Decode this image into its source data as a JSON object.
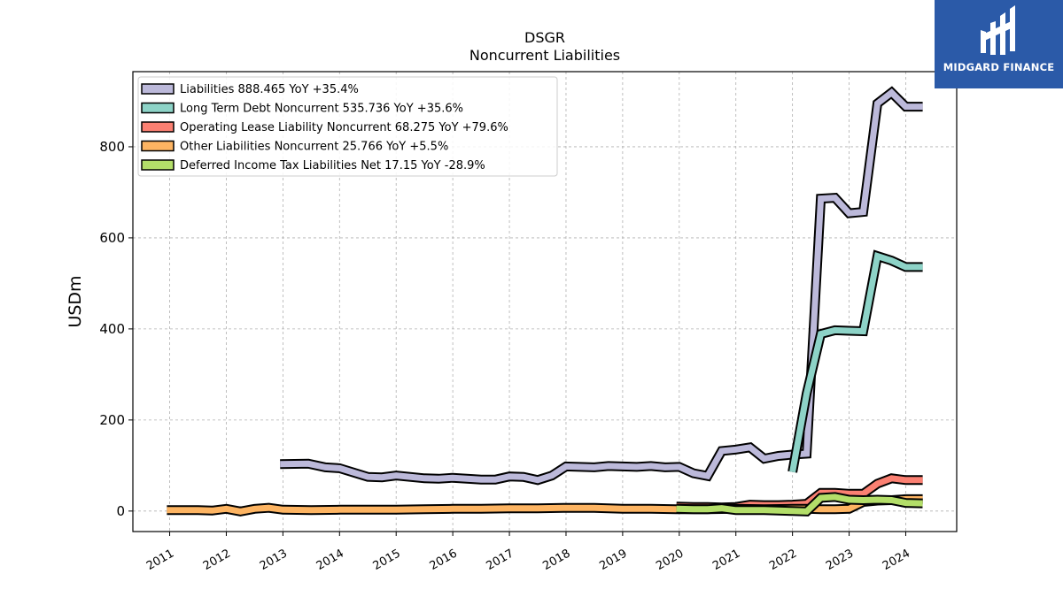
{
  "brand": {
    "name": "MIDGARD FINANCE",
    "color": "#2b5aa8",
    "icon": "midgard-logo-icon"
  },
  "chart_data": {
    "type": "line",
    "title": "DSGR",
    "subtitle": "Noncurrent  Liabilities",
    "ylabel": "USDm",
    "xlabel": "",
    "xlim": [
      2010.35,
      2024.9
    ],
    "ylim": [
      -45,
      965
    ],
    "yticks": [
      0,
      200,
      400,
      600,
      800
    ],
    "xticks": [
      "2011",
      "2012",
      "2013",
      "2014",
      "2015",
      "2016",
      "2017",
      "2018",
      "2019",
      "2020",
      "2021",
      "2022",
      "2023",
      "2024"
    ],
    "grid": true,
    "legend_position": "top-left",
    "series": [
      {
        "name": "Liabilities",
        "legend": "Liabilities  888.465 YoY +35.4%",
        "color": "#bcb9da",
        "x": [
          2012.95,
          2013.45,
          2013.75,
          2014.0,
          2014.5,
          2014.75,
          2015.0,
          2015.5,
          2015.75,
          2016.0,
          2016.5,
          2016.75,
          2017.0,
          2017.25,
          2017.5,
          2017.75,
          2018.0,
          2018.5,
          2018.75,
          2019.0,
          2019.25,
          2019.5,
          2019.75,
          2020.0,
          2020.25,
          2020.5,
          2020.75,
          2021.0,
          2021.25,
          2021.5,
          2021.75,
          2022.0,
          2022.25,
          2022.5,
          2022.75,
          2023.0,
          2023.25,
          2023.5,
          2023.75,
          2024.0,
          2024.3
        ],
        "y": [
          103,
          104,
          96,
          94,
          75,
          74,
          78,
          72,
          71,
          73,
          69,
          69,
          76,
          75,
          68,
          78,
          98,
          96,
          99,
          98,
          97,
          99,
          96,
          97,
          83,
          77,
          132,
          135,
          140,
          115,
          121,
          124,
          126,
          686,
          688,
          654,
          657,
          895,
          919,
          888,
          888
        ]
      },
      {
        "name": "Long Term Debt Noncurrent",
        "legend": "Long Term Debt Noncurrent  535.736 YoY +35.6%",
        "color": "#8dd3c7",
        "x": [
          2022.0,
          2022.25,
          2022.5,
          2022.75,
          2023.0,
          2023.25,
          2023.5,
          2023.75,
          2024.0,
          2024.3
        ],
        "y": [
          86,
          258,
          389,
          397,
          396,
          395,
          560,
          550,
          536,
          536
        ]
      },
      {
        "name": "Operating Lease Liability Noncurrent",
        "legend": "Operating Lease Liability Noncurrent  68.275 YoY +79.6%",
        "color": "#fb8072",
        "x": [
          2019.95,
          2020.25,
          2020.5,
          2020.75,
          2021.0,
          2021.25,
          2021.5,
          2021.75,
          2022.0,
          2022.25,
          2022.5,
          2022.75,
          2023.0,
          2023.25,
          2023.5,
          2023.75,
          2024.0,
          2024.3
        ],
        "y": [
          10,
          9,
          9,
          8,
          9,
          14,
          13,
          13,
          14,
          16,
          40,
          40,
          38,
          38,
          60,
          72,
          68,
          68
        ]
      },
      {
        "name": "Other Liabilities Noncurrent",
        "legend": "Other Liabilities Noncurrent  25.766 YoY +5.5%",
        "color": "#fdb462",
        "x": [
          2010.95,
          2011.25,
          2011.5,
          2011.75,
          2012.0,
          2012.25,
          2012.5,
          2012.75,
          2013.0,
          2013.5,
          2014.0,
          2014.5,
          2015.0,
          2015.5,
          2016.0,
          2016.5,
          2017.0,
          2017.5,
          2018.0,
          2018.5,
          2019.0,
          2019.5,
          2020.0,
          2020.5,
          2021.0,
          2021.5,
          2022.0,
          2022.25,
          2022.5,
          2022.75,
          2023.0,
          2023.25,
          2023.5,
          2023.75,
          2024.0,
          2024.3
        ],
        "y": [
          2,
          2,
          2,
          1,
          5,
          -1,
          5,
          7,
          3,
          2,
          3,
          3,
          3,
          4,
          5,
          5,
          6,
          6,
          7,
          7,
          5,
          5,
          4,
          4,
          5,
          4,
          5,
          5,
          4,
          4,
          5,
          20,
          23,
          24,
          26,
          26
        ]
      },
      {
        "name": "Deferred Income Tax Liabilities Net",
        "legend": "Deferred Income Tax Liabilities Net  17.15 YoY -28.9%",
        "color": "#b3de69",
        "x": [
          2019.95,
          2020.25,
          2020.5,
          2020.75,
          2021.0,
          2021.25,
          2021.5,
          2021.75,
          2022.0,
          2022.25,
          2022.5,
          2022.75,
          2023.0,
          2023.25,
          2023.5,
          2023.75,
          2024.0,
          2024.3
        ],
        "y": [
          5,
          4,
          4,
          6,
          2,
          2,
          2,
          1,
          0,
          -1,
          29,
          31,
          25,
          24,
          25,
          24,
          18,
          17
        ]
      }
    ]
  }
}
